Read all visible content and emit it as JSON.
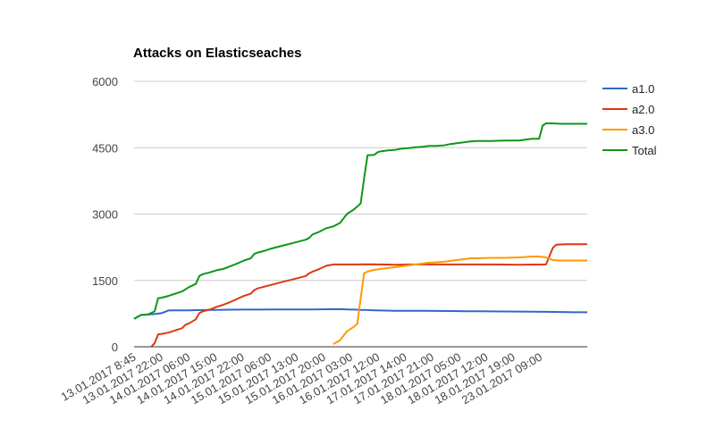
{
  "chart_data": {
    "type": "line",
    "title": "Attacks on Elasticseaches",
    "xlabel": "",
    "ylabel": "",
    "ylim": [
      0,
      6000
    ],
    "yticks": [
      0,
      1500,
      3000,
      4500,
      6000
    ],
    "ytick_labels": [
      "0",
      "1500",
      "3000",
      "4500",
      "6000"
    ],
    "xtick_labels": [
      "13.01.2017 8:45",
      "13.01.2017 22:00",
      "14.01.2017 06:00",
      "14.01.2017 15:00",
      "14.01.2017 22:00",
      "15.01.2017 06:00",
      "15.01.2017 13:00",
      "15.01.2017 20:00",
      "16.01.2017 03:00",
      "16.01.2017 12:00",
      "17.01.2017 14:00",
      "17.01.2017 21:00",
      "18.01.2017 05:00",
      "18.01.2017 12:00",
      "18.01.2017 19:00",
      "23.01.2017 09:00"
    ],
    "grid": true,
    "legend_position": "right",
    "series": [
      {
        "name": "a1.0",
        "color": "#3366cc",
        "points": [
          [
            0,
            630
          ],
          [
            1,
            720
          ],
          [
            2,
            730
          ],
          [
            3,
            740
          ],
          [
            4,
            760
          ],
          [
            5,
            820
          ],
          [
            6,
            825
          ],
          [
            7,
            825
          ],
          [
            8,
            825
          ],
          [
            9,
            828
          ],
          [
            10,
            830
          ],
          [
            12,
            835
          ],
          [
            14,
            838
          ],
          [
            16,
            840
          ],
          [
            18,
            840
          ],
          [
            20,
            842
          ],
          [
            22,
            843
          ],
          [
            24,
            845
          ],
          [
            26,
            845
          ],
          [
            28,
            848
          ],
          [
            30,
            850
          ],
          [
            31,
            845
          ],
          [
            32,
            840
          ],
          [
            33,
            835
          ],
          [
            34,
            830
          ],
          [
            35,
            825
          ],
          [
            36,
            820
          ],
          [
            38,
            815
          ],
          [
            40,
            815
          ],
          [
            42,
            812
          ],
          [
            44,
            810
          ],
          [
            46,
            808
          ],
          [
            48,
            805
          ],
          [
            50,
            803
          ],
          [
            52,
            800
          ],
          [
            54,
            798
          ],
          [
            56,
            795
          ],
          [
            58,
            792
          ],
          [
            60,
            790
          ],
          [
            62,
            785
          ],
          [
            64,
            780
          ],
          [
            66,
            780
          ]
        ]
      },
      {
        "name": "a2.0",
        "color": "#dc3912",
        "points": [
          [
            2.5,
            0
          ],
          [
            3,
            80
          ],
          [
            3.5,
            280
          ],
          [
            4,
            290
          ],
          [
            5,
            320
          ],
          [
            6,
            370
          ],
          [
            7,
            420
          ],
          [
            7.5,
            500
          ],
          [
            8,
            530
          ],
          [
            9,
            620
          ],
          [
            9.5,
            760
          ],
          [
            10,
            800
          ],
          [
            11,
            840
          ],
          [
            12,
            900
          ],
          [
            13,
            950
          ],
          [
            14,
            1010
          ],
          [
            15,
            1080
          ],
          [
            16,
            1150
          ],
          [
            17,
            1200
          ],
          [
            17.5,
            1280
          ],
          [
            18,
            1320
          ],
          [
            19,
            1360
          ],
          [
            20,
            1400
          ],
          [
            21,
            1440
          ],
          [
            22,
            1480
          ],
          [
            23,
            1520
          ],
          [
            24,
            1560
          ],
          [
            25,
            1600
          ],
          [
            25.5,
            1660
          ],
          [
            26,
            1700
          ],
          [
            27,
            1760
          ],
          [
            28,
            1830
          ],
          [
            29,
            1860
          ],
          [
            30,
            1860
          ],
          [
            32,
            1860
          ],
          [
            34,
            1865
          ],
          [
            36,
            1860
          ],
          [
            38,
            1855
          ],
          [
            40,
            1860
          ],
          [
            42,
            1860
          ],
          [
            44,
            1860
          ],
          [
            46,
            1860
          ],
          [
            48,
            1860
          ],
          [
            50,
            1860
          ],
          [
            52,
            1860
          ],
          [
            54,
            1858
          ],
          [
            56,
            1855
          ],
          [
            58,
            1858
          ],
          [
            60,
            1860
          ],
          [
            61,
            2240
          ],
          [
            61.5,
            2310
          ],
          [
            63,
            2320
          ],
          [
            66,
            2320
          ]
        ]
      },
      {
        "name": "a3.0",
        "color": "#ff9900",
        "points": [
          [
            29,
            60
          ],
          [
            30,
            150
          ],
          [
            31,
            350
          ],
          [
            32,
            450
          ],
          [
            32.5,
            520
          ],
          [
            33.5,
            1660
          ],
          [
            34,
            1700
          ],
          [
            35,
            1740
          ],
          [
            36,
            1760
          ],
          [
            37,
            1780
          ],
          [
            38,
            1800
          ],
          [
            39,
            1820
          ],
          [
            40,
            1840
          ],
          [
            41,
            1860
          ],
          [
            42,
            1880
          ],
          [
            43,
            1900
          ],
          [
            44,
            1910
          ],
          [
            45,
            1920
          ],
          [
            46,
            1940
          ],
          [
            47,
            1960
          ],
          [
            48,
            1980
          ],
          [
            49,
            2000
          ],
          [
            50,
            2000
          ],
          [
            52,
            2010
          ],
          [
            54,
            2010
          ],
          [
            56,
            2020
          ],
          [
            57,
            2030
          ],
          [
            58,
            2040
          ],
          [
            59,
            2040
          ],
          [
            60,
            2020
          ],
          [
            61,
            1960
          ],
          [
            62,
            1950
          ],
          [
            63,
            1950
          ],
          [
            66,
            1950
          ]
        ]
      },
      {
        "name": "Total",
        "color": "#109618",
        "points": [
          [
            0,
            630
          ],
          [
            1,
            720
          ],
          [
            2,
            730
          ],
          [
            3,
            800
          ],
          [
            3.5,
            1100
          ],
          [
            4,
            1110
          ],
          [
            5,
            1150
          ],
          [
            6,
            1200
          ],
          [
            7,
            1250
          ],
          [
            8,
            1350
          ],
          [
            9,
            1420
          ],
          [
            9.5,
            1600
          ],
          [
            10,
            1640
          ],
          [
            11,
            1680
          ],
          [
            12,
            1730
          ],
          [
            13,
            1760
          ],
          [
            14,
            1820
          ],
          [
            15,
            1880
          ],
          [
            16,
            1950
          ],
          [
            17,
            2000
          ],
          [
            17.5,
            2100
          ],
          [
            18,
            2130
          ],
          [
            19,
            2170
          ],
          [
            20,
            2220
          ],
          [
            21,
            2260
          ],
          [
            22,
            2300
          ],
          [
            23,
            2340
          ],
          [
            24,
            2380
          ],
          [
            25,
            2420
          ],
          [
            25.5,
            2460
          ],
          [
            26,
            2540
          ],
          [
            27,
            2600
          ],
          [
            28,
            2680
          ],
          [
            29,
            2720
          ],
          [
            30,
            2800
          ],
          [
            31,
            3000
          ],
          [
            32,
            3100
          ],
          [
            33,
            3240
          ],
          [
            33.5,
            3800
          ],
          [
            34,
            4330
          ],
          [
            35,
            4340
          ],
          [
            35.5,
            4400
          ],
          [
            36,
            4420
          ],
          [
            37,
            4440
          ],
          [
            38,
            4450
          ],
          [
            39,
            4480
          ],
          [
            40,
            4490
          ],
          [
            41,
            4510
          ],
          [
            42,
            4520
          ],
          [
            43,
            4540
          ],
          [
            44,
            4540
          ],
          [
            45,
            4550
          ],
          [
            46,
            4580
          ],
          [
            47,
            4600
          ],
          [
            48,
            4620
          ],
          [
            49,
            4640
          ],
          [
            50,
            4650
          ],
          [
            52,
            4650
          ],
          [
            54,
            4660
          ],
          [
            56,
            4660
          ],
          [
            57,
            4680
          ],
          [
            58,
            4700
          ],
          [
            59,
            4700
          ],
          [
            59.5,
            5000
          ],
          [
            60,
            5050
          ],
          [
            61,
            5050
          ],
          [
            62,
            5040
          ],
          [
            66,
            5040
          ]
        ]
      }
    ]
  }
}
